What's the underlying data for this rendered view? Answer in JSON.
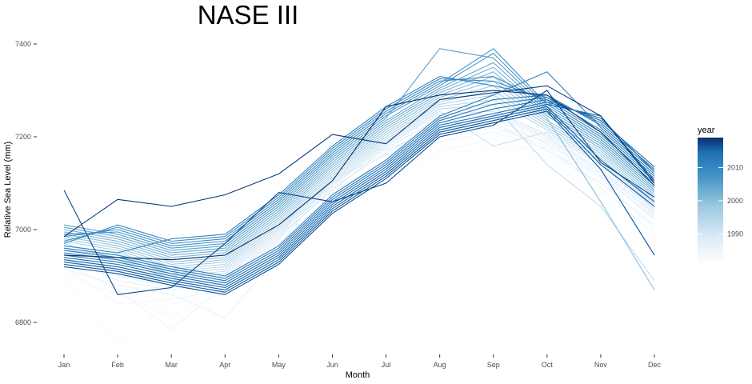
{
  "chart_data": {
    "type": "line",
    "title": "NASE III",
    "xlabel": "Month",
    "ylabel": "Relative Sea Level (mm)",
    "categories": [
      "Jan",
      "Feb",
      "Mar",
      "Apr",
      "May",
      "Jun",
      "Jul",
      "Aug",
      "Sep",
      "Oct",
      "Nov",
      "Dec"
    ],
    "ylim": [
      6720,
      7430
    ],
    "yticks": [
      6800,
      7000,
      7200,
      7400
    ],
    "yticks_labels": [
      "6800",
      "7000",
      "7200",
      "7400"
    ],
    "grid": false,
    "legend": {
      "title": "year",
      "placement": "right",
      "type": "colorbar",
      "range": [
        1981,
        2019
      ],
      "ticks": [
        1990,
        2000,
        2010
      ],
      "tick_labels": [
        "1990",
        "2000",
        "2010"
      ],
      "color_low": "#f7fbff",
      "color_high": "#08306b"
    },
    "series_note_colors": [
      "#f7fbff",
      "#deebf7",
      "#c6dbef",
      "#9ecae1",
      "#6baed6",
      "#4292c6",
      "#2171b5",
      "#08519c",
      "#08306b"
    ],
    "series": [
      {
        "year": 1981,
        "values": [
          6895,
          6752,
          6840,
          6860,
          6950,
          7040,
          7110,
          7160,
          7180,
          7150,
          7080,
          6975
        ]
      },
      {
        "year": 1982,
        "values": [
          6905,
          6860,
          6815,
          6865,
          6960,
          7050,
          7120,
          7170,
          7195,
          7160,
          7100,
          7005
        ]
      },
      {
        "year": 1983,
        "values": [
          6920,
          6840,
          6850,
          6870,
          6955,
          7060,
          7130,
          7190,
          7210,
          7175,
          7110,
          7000
        ]
      },
      {
        "year": 1984,
        "values": [
          6930,
          6870,
          6785,
          6880,
          6970,
          7070,
          7140,
          7200,
          7220,
          7180,
          7090,
          6990
        ]
      },
      {
        "year": 1985,
        "values": [
          6915,
          6880,
          6860,
          6810,
          6945,
          7080,
          7150,
          7210,
          7225,
          7190,
          7120,
          7020
        ]
      },
      {
        "year": 1986,
        "values": [
          6940,
          6890,
          6870,
          6885,
          6965,
          7110,
          7160,
          7215,
          7230,
          7170,
          7100,
          7010
        ]
      },
      {
        "year": 1987,
        "values": [
          6950,
          6900,
          6875,
          6890,
          6975,
          7190,
          7170,
          7225,
          7240,
          7185,
          7115,
          7025
        ]
      },
      {
        "year": 1988,
        "values": [
          6935,
          6910,
          6880,
          6895,
          6980,
          7090,
          7165,
          7230,
          7245,
          7195,
          7125,
          7030
        ]
      },
      {
        "year": 1989,
        "values": [
          6925,
          6920,
          6890,
          6900,
          6985,
          7085,
          7175,
          7240,
          7250,
          7200,
          7130,
          7035
        ]
      },
      {
        "year": 1990,
        "values": [
          6960,
          6930,
          6895,
          6905,
          6990,
          7095,
          7180,
          7250,
          7255,
          7205,
          7140,
          7040
        ]
      },
      {
        "year": 1991,
        "values": [
          6970,
          6935,
          6900,
          6910,
          6995,
          7100,
          7185,
          7255,
          7180,
          7210,
          7145,
          7045
        ]
      },
      {
        "year": 1992,
        "values": [
          6945,
          6940,
          6905,
          6915,
          7000,
          7105,
          7190,
          7260,
          7270,
          7140,
          7050,
          6890
        ]
      },
      {
        "year": 1993,
        "values": [
          6955,
          6945,
          6910,
          6920,
          7005,
          7110,
          7195,
          7265,
          7280,
          7215,
          7150,
          7050
        ]
      },
      {
        "year": 1994,
        "values": [
          6965,
          6950,
          6915,
          6925,
          7010,
          7115,
          7200,
          7270,
          7290,
          7220,
          7155,
          7055
        ]
      },
      {
        "year": 1995,
        "values": [
          6975,
          6955,
          6920,
          6930,
          7015,
          7120,
          7205,
          7275,
          7300,
          7225,
          7160,
          7060
        ]
      },
      {
        "year": 1996,
        "values": [
          6980,
          6960,
          6925,
          6935,
          7020,
          7125,
          7210,
          7280,
          7310,
          7230,
          7165,
          7065
        ]
      },
      {
        "year": 1997,
        "values": [
          6985,
          6965,
          6930,
          6940,
          7025,
          7130,
          7215,
          7285,
          7320,
          7235,
          7170,
          7070
        ]
      },
      {
        "year": 1998,
        "values": [
          6990,
          6970,
          6935,
          6945,
          7030,
          7135,
          7220,
          7290,
          7330,
          7240,
          7060,
          6870
        ]
      },
      {
        "year": 1999,
        "values": [
          6995,
          6975,
          6940,
          6950,
          7035,
          7140,
          7225,
          7295,
          7340,
          7245,
          7175,
          7075
        ]
      },
      {
        "year": 2000,
        "values": [
          7000,
          6980,
          6945,
          6955,
          7040,
          7145,
          7230,
          7300,
          7350,
          7250,
          7180,
          7080
        ]
      },
      {
        "year": 2001,
        "values": [
          7005,
          6985,
          6950,
          6960,
          7045,
          7150,
          7235,
          7305,
          7360,
          7255,
          7185,
          7085
        ]
      },
      {
        "year": 2002,
        "values": [
          7010,
          6990,
          6955,
          6965,
          7050,
          7155,
          7240,
          7390,
          7370,
          7260,
          7190,
          7090
        ]
      },
      {
        "year": 2003,
        "values": [
          6990,
          6995,
          6960,
          6970,
          7055,
          7160,
          7245,
          7310,
          7380,
          7265,
          7195,
          7095
        ]
      },
      {
        "year": 2004,
        "values": [
          6985,
          7000,
          6965,
          6975,
          7060,
          7165,
          7250,
          7315,
          7390,
          7270,
          7200,
          7100
        ]
      },
      {
        "year": 2005,
        "values": [
          6975,
          7005,
          6970,
          6980,
          7065,
          7170,
          7255,
          7320,
          7330,
          7275,
          7205,
          7105
        ]
      },
      {
        "year": 2006,
        "values": [
          6970,
          7010,
          6975,
          6985,
          7070,
          7175,
          7260,
          7325,
          7320,
          7280,
          7210,
          7110
        ]
      },
      {
        "year": 2007,
        "values": [
          6965,
          6950,
          6980,
          6990,
          7075,
          7180,
          7265,
          7330,
          7310,
          7285,
          7215,
          7115
        ]
      },
      {
        "year": 2008,
        "values": [
          6960,
          6945,
          6920,
          6900,
          6965,
          7075,
          7150,
          7245,
          7290,
          7340,
          7220,
          7120
        ]
      },
      {
        "year": 2009,
        "values": [
          6955,
          6940,
          6915,
          6895,
          6960,
          7070,
          7145,
          7240,
          7280,
          7290,
          7225,
          7125
        ]
      },
      {
        "year": 2010,
        "values": [
          6950,
          6935,
          6910,
          6890,
          6955,
          7065,
          7140,
          7235,
          7270,
          7285,
          7230,
          7130
        ]
      },
      {
        "year": 2011,
        "values": [
          6945,
          6930,
          6905,
          6885,
          6950,
          7060,
          7135,
          7230,
          7260,
          7280,
          7235,
          7135
        ]
      },
      {
        "year": 2012,
        "values": [
          6940,
          6925,
          6900,
          6880,
          6945,
          7055,
          7130,
          7225,
          7250,
          7275,
          7240,
          7125
        ]
      },
      {
        "year": 2013,
        "values": [
          6935,
          6920,
          6895,
          6875,
          6940,
          7050,
          7125,
          7220,
          7245,
          7270,
          7245,
          7105
        ]
      },
      {
        "year": 2014,
        "values": [
          6930,
          6915,
          6890,
          6870,
          6935,
          7045,
          7120,
          7215,
          7240,
          7265,
          7150,
          7060
        ]
      },
      {
        "year": 2015,
        "values": [
          6925,
          6910,
          6885,
          6865,
          6930,
          7040,
          7115,
          7210,
          7235,
          7260,
          7140,
          7050
        ]
      },
      {
        "year": 2016,
        "values": [
          6920,
          6905,
          6880,
          6860,
          6925,
          7035,
          7110,
          7205,
          7230,
          7255,
          7130,
          6945
        ]
      },
      {
        "year": 2017,
        "values": [
          7085,
          6860,
          6875,
          6970,
          7080,
          7060,
          7100,
          7200,
          7225,
          7300,
          7145,
          7070
        ]
      },
      {
        "year": 2018,
        "values": [
          6985,
          7065,
          7050,
          7075,
          7120,
          7205,
          7185,
          7280,
          7295,
          7310,
          7245,
          7100
        ]
      },
      {
        "year": 2019,
        "values": [
          6945,
          6940,
          6935,
          6945,
          7010,
          7105,
          7265,
          7290,
          7300,
          7290,
          7210,
          7095
        ]
      }
    ]
  }
}
